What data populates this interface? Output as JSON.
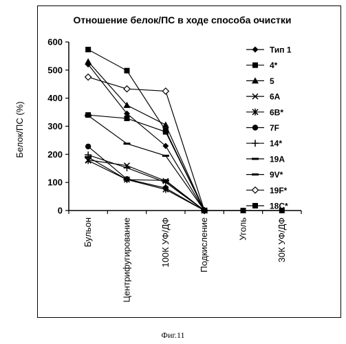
{
  "chart_data": {
    "type": "line",
    "title": "Отношение белок/ПС в ходе способа очистки",
    "xlabel": "",
    "ylabel": "Белок/ПС  (%)",
    "ylim": [
      0,
      600
    ],
    "yticks": [
      "0",
      "100",
      "200",
      "300",
      "400",
      "500",
      "600"
    ],
    "categories": [
      "Бульон",
      "Центрифугирование",
      "100К УФ/ДФ",
      "Подкисление",
      "Уголь",
      "30К УФ/ДФ"
    ],
    "grid": false,
    "legend_position": "right",
    "series": [
      {
        "name": "Тип 1",
        "marker": "diamond",
        "values": [
          520,
          345,
          230,
          0,
          null,
          null
        ]
      },
      {
        "name": "4*",
        "marker": "square",
        "values": [
          340,
          328,
          280,
          0,
          null,
          null
        ]
      },
      {
        "name": "5",
        "marker": "triangle",
        "values": [
          530,
          375,
          305,
          0,
          null,
          null
        ]
      },
      {
        "name": "6A",
        "marker": "x",
        "values": [
          180,
          160,
          105,
          0,
          null,
          null
        ]
      },
      {
        "name": "6B*",
        "marker": "star",
        "values": [
          178,
          110,
          75,
          0,
          null,
          null
        ]
      },
      {
        "name": "7F",
        "marker": "circle",
        "values": [
          228,
          112,
          80,
          0,
          null,
          null
        ]
      },
      {
        "name": "14*",
        "marker": "plus",
        "values": [
          198,
          152,
          100,
          0,
          null,
          null
        ]
      },
      {
        "name": "19A",
        "marker": "dash",
        "values": [
          338,
          238,
          195,
          0,
          null,
          null
        ]
      },
      {
        "name": "9V*",
        "marker": "dash",
        "values": [
          190,
          110,
          107,
          0,
          null,
          null
        ]
      },
      {
        "name": "19F*",
        "marker": "diamond-open",
        "values": [
          475,
          433,
          425,
          0,
          null,
          null
        ]
      },
      {
        "name": "18C*",
        "marker": "square",
        "values": [
          573,
          498,
          285,
          0,
          0,
          0
        ]
      }
    ]
  },
  "figure_caption": "Фиг.11"
}
